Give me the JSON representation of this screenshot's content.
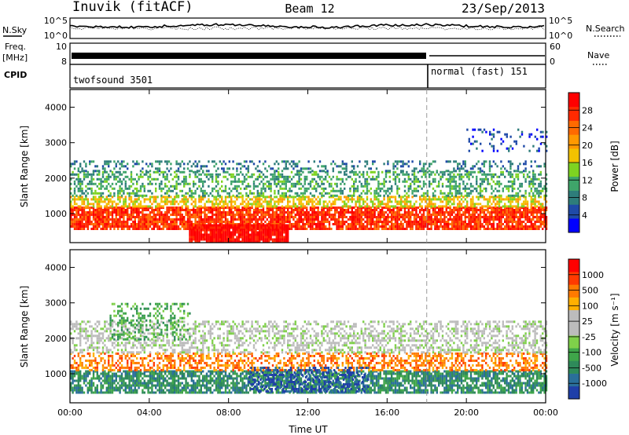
{
  "header": {
    "station": "Inuvik (fitACF)",
    "beam": "Beam 12",
    "date": "23/Sep/2013"
  },
  "strips": {
    "nsky_label": "N.Sky",
    "nsky_ticks": [
      "10^5",
      "10^0"
    ],
    "nsearch_label": "N.Search",
    "nsearch_ticks": [
      "10^5",
      "10^0"
    ],
    "freq_label_1": "Freq.",
    "freq_label_2": "[MHz]",
    "freq_ticks": [
      "10",
      "8"
    ],
    "nave_label": "Nave",
    "nave_ticks": [
      "60",
      "0"
    ],
    "cpid_label": "CPID",
    "cpid_segments": [
      "twofsound 3501",
      "normal (fast) 151"
    ]
  },
  "chart_data": [
    {
      "type": "heatmap",
      "quantity": "Power",
      "ylabel": "Slant Range [km]",
      "yticks": [
        "4000",
        "3000",
        "2000",
        "1000"
      ],
      "ylim": [
        180,
        4500
      ],
      "colorbar_label": "Power [dB]",
      "colorbar_ticks": [
        "28",
        "24",
        "20",
        "16",
        "12",
        "8",
        "4"
      ],
      "colorbar_colors": [
        "#0000ff",
        "#1f4aa8",
        "#2e7d7b",
        "#3fa56a",
        "#7ed321",
        "#f2c200",
        "#ff9900",
        "#ff6a00",
        "#ff2a00",
        "#ff0000"
      ],
      "bands": [
        {
          "t0": 0.0,
          "t1": 24.0,
          "r0": 600,
          "r1": 1200,
          "color_index": 8,
          "density": 0.85
        },
        {
          "t0": 0.0,
          "t1": 24.0,
          "r0": 1200,
          "r1": 1500,
          "color_index": 5,
          "density": 0.6
        },
        {
          "t0": 0.0,
          "t1": 24.0,
          "r0": 1500,
          "r1": 2200,
          "color_index": 3,
          "density": 0.45
        },
        {
          "t0": 0.0,
          "t1": 24.0,
          "r0": 2200,
          "r1": 2500,
          "color_index": 2,
          "density": 0.3
        },
        {
          "t0": 6.0,
          "t1": 11.0,
          "r0": 200,
          "r1": 700,
          "color_index": 9,
          "density": 0.95
        },
        {
          "t0": 20.0,
          "t1": 24.0,
          "r0": 2800,
          "r1": 3400,
          "color_index": 1,
          "density": 0.15
        }
      ]
    },
    {
      "type": "heatmap",
      "quantity": "Velocity",
      "ylabel": "Slant Range [km]",
      "yticks": [
        "4000",
        "3000",
        "2000",
        "1000"
      ],
      "ylim": [
        180,
        4500
      ],
      "xlabel": "Time UT",
      "xticks": [
        "00:00",
        "04:00",
        "08:00",
        "12:00",
        "16:00",
        "20:00",
        "00:00"
      ],
      "xlim": [
        0,
        24
      ],
      "colorbar_label": "Velocity [m s⁻¹]",
      "colorbar_ticks": [
        "1000",
        "500",
        "100",
        "25",
        "-25",
        "-100",
        "-500",
        "-1000"
      ],
      "colorbar_colors": [
        "#1f3fa8",
        "#2a6f9a",
        "#2e8a5a",
        "#3fa54a",
        "#7fd04a",
        "#bcbcbc",
        "#bcbcbc",
        "#ffb000",
        "#ff7a00",
        "#ff3a00",
        "#ff0000"
      ],
      "bands": [
        {
          "t0": 0.0,
          "t1": 24.0,
          "r0": 500,
          "r1": 1100,
          "color_index": 2,
          "density": 0.75
        },
        {
          "t0": 0.0,
          "t1": 24.0,
          "r0": 1100,
          "r1": 1600,
          "color_index": 8,
          "density": 0.5
        },
        {
          "t0": 0.0,
          "t1": 24.0,
          "r0": 1600,
          "r1": 2500,
          "color_index": 5,
          "density": 0.45
        },
        {
          "t0": 9.0,
          "t1": 15.0,
          "r0": 500,
          "r1": 1200,
          "color_index": 0,
          "density": 0.4
        },
        {
          "t0": 2.0,
          "t1": 6.0,
          "r0": 2000,
          "r1": 3000,
          "color_index": 3,
          "density": 0.3
        }
      ]
    }
  ],
  "markers": {
    "mode_change_time": 18.0
  }
}
